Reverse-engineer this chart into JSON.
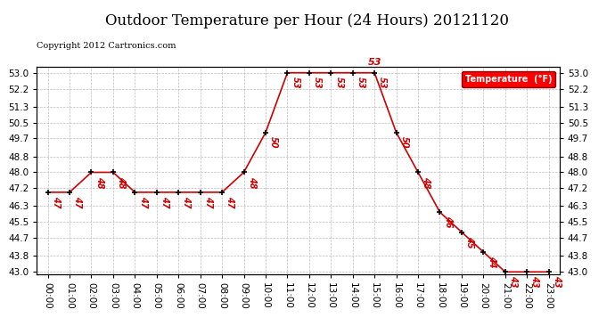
{
  "title": "Outdoor Temperature per Hour (24 Hours) 20121120",
  "copyright": "Copyright 2012 Cartronics.com",
  "legend_label": "Temperature  (°F)",
  "hours": [
    "00:00",
    "01:00",
    "02:00",
    "03:00",
    "04:00",
    "05:00",
    "06:00",
    "07:00",
    "08:00",
    "09:00",
    "10:00",
    "11:00",
    "12:00",
    "13:00",
    "14:00",
    "15:00",
    "16:00",
    "17:00",
    "18:00",
    "19:00",
    "20:00",
    "21:00",
    "22:00",
    "23:00"
  ],
  "temps": [
    47,
    47,
    48,
    48,
    47,
    47,
    47,
    47,
    47,
    48,
    50,
    53,
    53,
    53,
    53,
    53,
    50,
    48,
    46,
    45,
    44,
    43,
    43,
    43
  ],
  "line_color": "#cc0000",
  "marker_color": "#000000",
  "label_color": "#cc0000",
  "bg_color": "#ffffff",
  "grid_color": "#bbbbbb",
  "title_fontsize": 12,
  "axis_fontsize": 7.5,
  "label_fontsize": 7,
  "copyright_fontsize": 7,
  "ylim_min": 43.0,
  "ylim_max": 53.0,
  "yticks": [
    43.0,
    43.8,
    44.7,
    45.5,
    46.3,
    47.2,
    48.0,
    48.8,
    49.7,
    50.5,
    51.3,
    52.2,
    53.0
  ],
  "peak_label_index": 15,
  "peak_label_value": "53"
}
